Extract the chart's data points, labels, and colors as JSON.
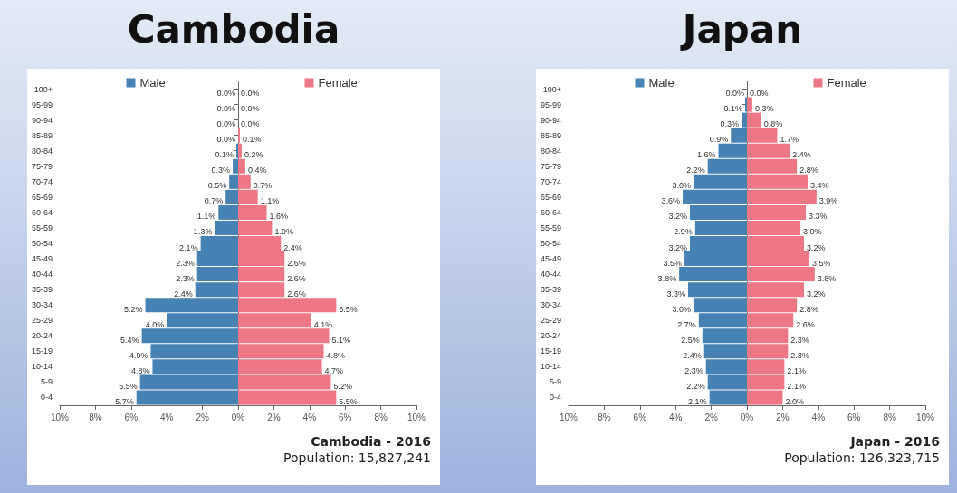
{
  "chart_data": [
    {
      "type": "bar",
      "orientation": "horizontal",
      "title": "Cambodia",
      "legend": "top",
      "categories": [
        "100+",
        "95-99",
        "90-94",
        "85-89",
        "80-84",
        "75-79",
        "70-74",
        "65-69",
        "60-64",
        "55-59",
        "50-54",
        "45-49",
        "40-44",
        "35-39",
        "30-34",
        "25-29",
        "20-24",
        "15-19",
        "10-14",
        "5-9",
        "0-4"
      ],
      "xlim": [
        10,
        0
      ],
      "xticks": [
        {
          "value": 10,
          "label": "10%"
        },
        {
          "value": 8,
          "label": "8%"
        },
        {
          "value": 6,
          "label": "6%"
        },
        {
          "value": 4,
          "label": "4%"
        },
        {
          "value": 2,
          "label": "2%"
        },
        {
          "value": 0,
          "label": "0%"
        }
      ],
      "series": [
        {
          "name": "Male",
          "color": "#4682b4",
          "values": [
            0,
            0,
            0,
            0,
            0.1,
            0.3,
            0.5,
            0.7,
            1.1,
            1.3,
            2.1,
            2.3,
            2.3,
            2.4,
            5.2,
            4.0,
            5.4,
            4.9,
            4.8,
            5.5,
            5.7
          ],
          "value_labels": [
            "0.0%",
            "0.0%",
            "0.0%",
            "0.0%",
            "0.1%",
            "0.3%",
            "0.5%",
            "0.7%",
            "1.1%",
            "1.3%",
            "2.1%",
            "2.3%",
            "2.3%",
            "2.4%",
            "5.2%",
            "4.0%",
            "5.4%",
            "4.9%",
            "4.8%",
            "5.5%",
            "5.7%"
          ]
        }
      ]
    },
    {
      "type": "bar",
      "orientation": "horizontal",
      "legend": "top",
      "annotations": [
        "Cambodia - 2016",
        "Population: 15,827,241"
      ],
      "categories": [
        null,
        null,
        null,
        null,
        null,
        null,
        null,
        null,
        null,
        null,
        null,
        null,
        null,
        null,
        null,
        null,
        null,
        null,
        null,
        null,
        null
      ],
      "xlim": [
        0,
        10
      ],
      "xticks": [
        {
          "value": 0,
          "label": null
        },
        {
          "value": 2,
          "label": "2%"
        },
        {
          "value": 4,
          "label": "4%"
        },
        {
          "value": 6,
          "label": "6%"
        },
        {
          "value": 8,
          "label": "8%"
        },
        {
          "value": 10,
          "label": "10%"
        }
      ],
      "series": [
        {
          "name": "Female",
          "color": "#ee7785",
          "values": [
            0,
            0,
            0,
            0.1,
            0.2,
            0.4,
            0.7,
            1.1,
            1.6,
            1.9,
            2.4,
            2.6,
            2.6,
            2.6,
            5.5,
            4.1,
            5.1,
            4.8,
            4.7,
            5.2,
            5.5
          ],
          "value_labels": [
            "0.0%",
            "0.0%",
            "0.0%",
            "0.1%",
            "0.2%",
            "0.4%",
            "0.7%",
            "1.1%",
            "1.6%",
            "1.9%",
            "2.4%",
            "2.6%",
            "2.6%",
            "2.6%",
            "5.5%",
            "4.1%",
            "5.1%",
            "4.8%",
            "4.7%",
            "5.2%",
            "5.5%"
          ]
        }
      ]
    },
    {
      "type": "bar",
      "orientation": "horizontal",
      "title": "Japan",
      "legend": "top",
      "categories": [
        "100+",
        "95-99",
        "90-94",
        "85-89",
        "80-84",
        "75-79",
        "70-74",
        "65-69",
        "60-64",
        "55-59",
        "50-54",
        "45-49",
        "40-44",
        "35-39",
        "30-34",
        "25-29",
        "20-24",
        "15-19",
        "10-14",
        "5-9",
        "0-4"
      ],
      "xlim": [
        10,
        0
      ],
      "xticks": [
        {
          "value": 10,
          "label": "10%"
        },
        {
          "value": 8,
          "label": "8%"
        },
        {
          "value": 6,
          "label": "6%"
        },
        {
          "value": 4,
          "label": "4%"
        },
        {
          "value": 2,
          "label": "2%"
        },
        {
          "value": 0,
          "label": "0%"
        }
      ],
      "series": [
        {
          "name": "Male",
          "color": "#4682b4",
          "values": [
            0,
            0.1,
            0.3,
            0.9,
            1.6,
            2.2,
            3.0,
            3.6,
            3.2,
            2.9,
            3.2,
            3.5,
            3.8,
            3.3,
            3.0,
            2.7,
            2.5,
            2.4,
            2.3,
            2.2,
            2.1
          ],
          "value_labels": [
            "0.0%",
            "0.1%",
            "0.3%",
            "0.9%",
            "1.6%",
            "2.2%",
            "3.0%",
            "3.6%",
            "3.2%",
            "2.9%",
            "3.2%",
            "3.5%",
            "3.8%",
            "3.3%",
            "3.0%",
            "2.7%",
            "2.5%",
            "2.4%",
            "2.3%",
            "2.2%",
            "2.1%"
          ]
        }
      ]
    },
    {
      "type": "bar",
      "orientation": "horizontal",
      "legend": "top",
      "annotations": [
        "Japan - 2016",
        "Population: 126,323,715"
      ],
      "categories": [
        null,
        null,
        null,
        null,
        null,
        null,
        null,
        null,
        null,
        null,
        null,
        null,
        null,
        null,
        null,
        null,
        null,
        null,
        null,
        null,
        null
      ],
      "xlim": [
        0,
        10
      ],
      "xticks": [
        {
          "value": 0,
          "label": null
        },
        {
          "value": 2,
          "label": "2%"
        },
        {
          "value": 4,
          "label": "4%"
        },
        {
          "value": 6,
          "label": "6%"
        },
        {
          "value": 8,
          "label": "8%"
        },
        {
          "value": 10,
          "label": "10%"
        }
      ],
      "series": [
        {
          "name": "Female",
          "color": "#ee7785",
          "values": [
            0,
            0.3,
            0.8,
            1.7,
            2.4,
            2.8,
            3.4,
            3.9,
            3.3,
            3.0,
            3.2,
            3.5,
            3.8,
            3.2,
            2.8,
            2.6,
            2.3,
            2.3,
            2.1,
            2.1,
            2.0
          ],
          "value_labels": [
            "0.0%",
            "0.3%",
            "0.8%",
            "1.7%",
            "2.4%",
            "2.8%",
            "3.4%",
            "3.9%",
            "3.3%",
            "3.0%",
            "3.2%",
            "3.5%",
            "3.8%",
            "3.2%",
            "2.8%",
            "2.6%",
            "2.3%",
            "2.3%",
            "2.1%",
            "2.1%",
            "2.0%"
          ]
        }
      ]
    }
  ]
}
